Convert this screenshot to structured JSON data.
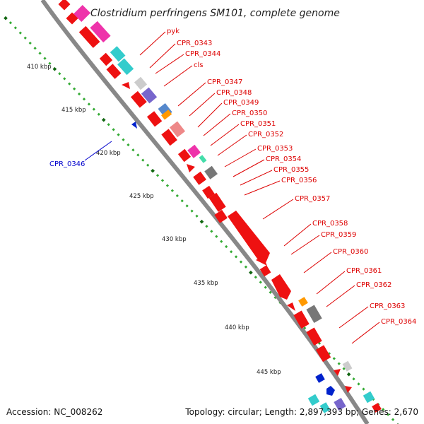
{
  "title": "Clostridium perfringens SM101, complete genome",
  "footer": {
    "accession": "Accession: NC_008262",
    "summary": "Topology: circular; Length: 2,897,393 bp; Genes: 2,670"
  },
  "colors": {
    "forward_label": "#dd0000",
    "reverse_label": "#0000cc",
    "backbone": "#888888",
    "tick_major": "#116611",
    "tick_minor": "#33aa33",
    "red": "#ee1111",
    "magenta": "#ee33aa",
    "cyan": "#33cccc",
    "slate": "#7766cc",
    "orange": "#ff9900",
    "steelblue": "#5588cc",
    "pink": "#ee8888",
    "gray": "#777777",
    "lightgray": "#cccccc",
    "blue": "#0022cc",
    "seafoam": "#44ddaa"
  },
  "kbp_labels": [
    "410 kbp",
    "415 kbp",
    "420 kbp",
    "425 kbp",
    "430 kbp",
    "435 kbp",
    "440 kbp",
    "445 kbp"
  ],
  "forward_labels": [
    "pyk",
    "CPR_0343",
    "CPR_0344",
    "cls",
    "CPR_0347",
    "CPR_0348",
    "CPR_0349",
    "CPR_0350",
    "CPR_0351",
    "CPR_0352",
    "CPR_0353",
    "CPR_0354",
    "CPR_0355",
    "CPR_0356",
    "CPR_0357",
    "CPR_0358",
    "CPR_0359",
    "CPR_0360",
    "CPR_0361",
    "CPR_0362",
    "CPR_0363",
    "CPR_0364"
  ],
  "reverse_labels": [
    "CPR_0346"
  ]
}
